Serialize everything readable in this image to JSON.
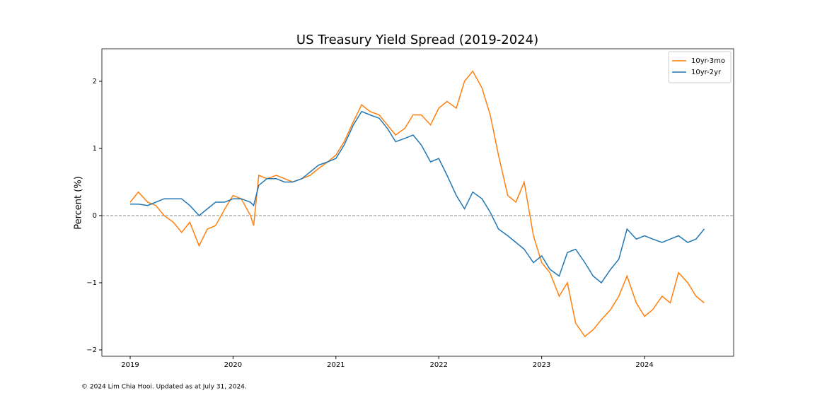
{
  "chart_data": {
    "type": "line",
    "title": "US Treasury Yield Spread (2019-2024)",
    "y_label": "Percent (%)",
    "footnote": "© 2024 Lim Chia Hooi. Updated as at July 31, 2024.",
    "x": [
      2019.0,
      2019.08,
      2019.17,
      2019.25,
      2019.33,
      2019.42,
      2019.5,
      2019.58,
      2019.67,
      2019.75,
      2019.83,
      2019.92,
      2020.0,
      2020.08,
      2020.17,
      2020.2,
      2020.25,
      2020.33,
      2020.42,
      2020.5,
      2020.58,
      2020.67,
      2020.75,
      2020.83,
      2020.92,
      2021.0,
      2021.08,
      2021.17,
      2021.25,
      2021.33,
      2021.42,
      2021.5,
      2021.58,
      2021.67,
      2021.75,
      2021.83,
      2021.92,
      2022.0,
      2022.08,
      2022.17,
      2022.25,
      2022.33,
      2022.42,
      2022.5,
      2022.58,
      2022.67,
      2022.75,
      2022.83,
      2022.92,
      2023.0,
      2023.08,
      2023.17,
      2023.25,
      2023.33,
      2023.42,
      2023.5,
      2023.58,
      2023.67,
      2023.75,
      2023.83,
      2023.92,
      2024.0,
      2024.08,
      2024.17,
      2024.25,
      2024.33,
      2024.42,
      2024.5,
      2024.58
    ],
    "series": [
      {
        "name": "10yr-3mo",
        "color": "#ff7f0e",
        "values": [
          0.2,
          0.35,
          0.2,
          0.15,
          0.0,
          -0.1,
          -0.25,
          -0.1,
          -0.45,
          -0.2,
          -0.15,
          0.1,
          0.3,
          0.25,
          0.0,
          -0.15,
          0.6,
          0.55,
          0.6,
          0.55,
          0.5,
          0.55,
          0.6,
          0.7,
          0.8,
          0.9,
          1.1,
          1.4,
          1.65,
          1.55,
          1.5,
          1.35,
          1.2,
          1.3,
          1.5,
          1.5,
          1.35,
          1.6,
          1.7,
          1.6,
          2.0,
          2.15,
          1.9,
          1.5,
          0.9,
          0.3,
          0.2,
          0.5,
          -0.3,
          -0.7,
          -0.85,
          -1.2,
          -1.0,
          -1.6,
          -1.8,
          -1.7,
          -1.55,
          -1.4,
          -1.2,
          -0.9,
          -1.3,
          -1.5,
          -1.4,
          -1.2,
          -1.3,
          -0.85,
          -1.0,
          -1.2,
          -1.3
        ]
      },
      {
        "name": "10yr-2yr",
        "color": "#1f77b4",
        "values": [
          0.17,
          0.17,
          0.15,
          0.2,
          0.25,
          0.25,
          0.25,
          0.15,
          0.0,
          0.1,
          0.2,
          0.2,
          0.25,
          0.25,
          0.2,
          0.15,
          0.45,
          0.55,
          0.55,
          0.5,
          0.5,
          0.55,
          0.65,
          0.75,
          0.8,
          0.85,
          1.05,
          1.35,
          1.55,
          1.5,
          1.45,
          1.3,
          1.1,
          1.15,
          1.2,
          1.05,
          0.8,
          0.85,
          0.6,
          0.3,
          0.1,
          0.35,
          0.25,
          0.05,
          -0.2,
          -0.3,
          -0.4,
          -0.5,
          -0.7,
          -0.6,
          -0.8,
          -0.9,
          -0.55,
          -0.5,
          -0.7,
          -0.9,
          -1.0,
          -0.8,
          -0.65,
          -0.2,
          -0.35,
          -0.3,
          -0.35,
          -0.4,
          -0.35,
          -0.3,
          -0.4,
          -0.35,
          -0.2
        ]
      }
    ],
    "xlim": [
      2018.725,
      2024.866
    ],
    "xticks": [
      2019,
      2020,
      2021,
      2022,
      2023,
      2024
    ],
    "ylim": [
      -2.095,
      2.484
    ],
    "yticks": [
      {
        "value": -2,
        "label": "−2"
      },
      {
        "value": -1,
        "label": "−1"
      },
      0,
      1,
      2
    ],
    "hline": 0,
    "legend": "upper right"
  }
}
